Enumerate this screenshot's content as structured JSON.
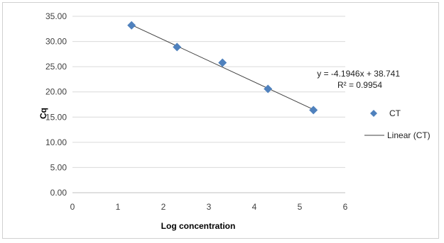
{
  "chart_data": {
    "type": "scatter",
    "xlabel": "Log concentration",
    "ylabel": "Cq",
    "xlim": [
      0,
      6
    ],
    "ylim": [
      0,
      35
    ],
    "x_ticks": [
      "0",
      "1",
      "2",
      "3",
      "4",
      "5",
      "6"
    ],
    "y_ticks": [
      "0.00",
      "5.00",
      "10.00",
      "15.00",
      "20.00",
      "25.00",
      "30.00",
      "35.00"
    ],
    "grid": "horizontal",
    "series": [
      {
        "name": "CT",
        "color": "#4f81bd",
        "marker": "diamond",
        "points": [
          {
            "x": 1.3,
            "y": 33.2
          },
          {
            "x": 2.3,
            "y": 28.9
          },
          {
            "x": 3.3,
            "y": 25.8
          },
          {
            "x": 4.3,
            "y": 20.6
          },
          {
            "x": 5.3,
            "y": 16.4
          }
        ]
      }
    ],
    "trendline": {
      "name": "Linear (CT)",
      "slope": -4.1946,
      "intercept": 38.741,
      "x_range": [
        1.3,
        5.3
      ],
      "color": "#404040",
      "equation_label": "y = -4.1946x + 38.741",
      "r2_label": "R² = 0.9954"
    },
    "legend": {
      "placement": "right",
      "items": [
        "CT",
        "Linear (CT)"
      ]
    }
  }
}
